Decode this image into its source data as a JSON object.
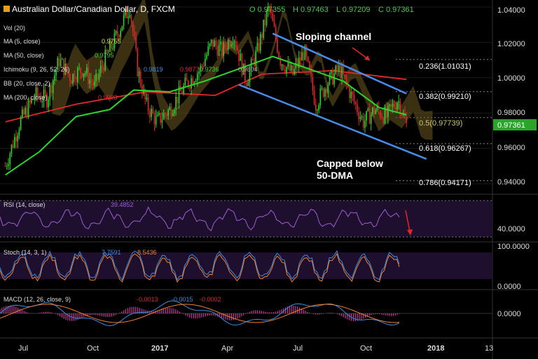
{
  "header": {
    "title": "Australian Dollar/Canadian Dollar, D, FXCM",
    "ohlc": {
      "open": "O 0.97355",
      "high": "H 0.97463",
      "low": "L 0.97209",
      "close": "C 0.97361"
    }
  },
  "indicators": [
    {
      "label": "Vol (20)"
    },
    {
      "label": "MA (5, close)",
      "value": "0.9755",
      "color": "#e7e74a"
    },
    {
      "label": "MA (50, close)",
      "value": "0.9795",
      "color": "#2ed52e"
    },
    {
      "label": "Ichimoku (9, 26, 52, 26)",
      "values": [
        "0.9819",
        "0.9877",
        "0.9736",
        "0.9804"
      ]
    },
    {
      "label": "BB (20, close, 2)"
    },
    {
      "label": "MA (200, close)",
      "value": "0.9993",
      "color": "#e02828"
    }
  ],
  "annotations": {
    "sloping_channel": "Sloping channel",
    "capped_line1": "Capped below",
    "capped_line2": "50-DMA"
  },
  "chart_data": [
    {
      "type": "candlestick",
      "title": "Australian Dollar/Canadian Dollar, D, FXCM",
      "ylim": [
        0.93,
        1.045
      ],
      "y_ticks": [
        "1.04000",
        "1.02000",
        "1.00000",
        "0.98000",
        "0.96000",
        "0.94000"
      ],
      "x_ticks": [
        "Jul",
        "Oct",
        "2017",
        "Apr",
        "Jul",
        "Oct",
        "2018",
        "13"
      ],
      "last_price": "0.97361",
      "fib_levels": [
        {
          "label": "0.236(1.01031)",
          "value": 1.01031
        },
        {
          "label": "0.382(0.99210)",
          "value": 0.9921
        },
        {
          "label": "0.5(0.97739)",
          "value": 0.97739
        },
        {
          "label": "0.618(0.96267)",
          "value": 0.96267
        },
        {
          "label": "0.786(0.94171)",
          "value": 0.94171
        }
      ],
      "close_path": [
        [
          "2016-06-01",
          0.95
        ],
        [
          "2016-06-20",
          0.975
        ],
        [
          "2016-07-10",
          0.99
        ],
        [
          "2016-07-25",
          0.988
        ],
        [
          "2016-08-10",
          1.01
        ],
        [
          "2016-08-25",
          1.0
        ],
        [
          "2016-09-10",
          1.005
        ],
        [
          "2016-09-25",
          0.995
        ],
        [
          "2016-10-10",
          1.012
        ],
        [
          "2016-10-20",
          1.02
        ],
        [
          "2016-11-01",
          1.032
        ],
        [
          "2016-11-10",
          1.04
        ],
        [
          "2016-11-20",
          1.005
        ],
        [
          "2016-12-01",
          0.985
        ],
        [
          "2016-12-15",
          0.975
        ],
        [
          "2017-01-01",
          0.982
        ],
        [
          "2017-01-20",
          0.995
        ],
        [
          "2017-02-10",
          1.005
        ],
        [
          "2017-02-25",
          1.02
        ],
        [
          "2017-03-10",
          1.015
        ],
        [
          "2017-03-25",
          1.025
        ],
        [
          "2017-04-10",
          0.998
        ],
        [
          "2017-04-25",
          1.015
        ],
        [
          "2017-05-10",
          1.04
        ],
        [
          "2017-05-25",
          1.01
        ],
        [
          "2017-06-10",
          1.002
        ],
        [
          "2017-06-25",
          1.015
        ],
        [
          "2017-07-10",
          0.985
        ],
        [
          "2017-07-25",
          0.997
        ],
        [
          "2017-08-10",
          1.005
        ],
        [
          "2017-08-25",
          0.99
        ],
        [
          "2017-09-10",
          0.975
        ],
        [
          "2017-09-25",
          0.982
        ],
        [
          "2017-10-10",
          0.978
        ],
        [
          "2017-10-25",
          0.988
        ],
        [
          "2017-11-05",
          0.973
        ]
      ],
      "ma50": [
        [
          "2016-06-01",
          0.945
        ],
        [
          "2016-07-15",
          0.958
        ],
        [
          "2016-09-01",
          0.978
        ],
        [
          "2016-10-15",
          0.982
        ],
        [
          "2016-11-15",
          0.993
        ],
        [
          "2017-01-01",
          0.992
        ],
        [
          "2017-02-15",
          0.998
        ],
        [
          "2017-04-01",
          1.005
        ],
        [
          "2017-05-15",
          1.012
        ],
        [
          "2017-07-01",
          1.005
        ],
        [
          "2017-08-15",
          0.998
        ],
        [
          "2017-10-01",
          0.983
        ],
        [
          "2017-11-05",
          0.979
        ]
      ],
      "ma200": [
        [
          "2016-06-01",
          0.975
        ],
        [
          "2016-09-01",
          0.985
        ],
        [
          "2016-12-01",
          0.992
        ],
        [
          "2017-03-01",
          0.99
        ],
        [
          "2017-05-01",
          1.002
        ],
        [
          "2017-08-01",
          1.004
        ],
        [
          "2017-11-05",
          0.999
        ]
      ],
      "channel_upper": [
        [
          "2017-05-15",
          1.025
        ],
        [
          "2017-11-05",
          0.991
        ]
      ],
      "channel_lower": [
        [
          "2017-04-01",
          0.996
        ],
        [
          "2017-12-01",
          0.954
        ]
      ]
    },
    {
      "type": "line",
      "title": "RSI (14, close)",
      "value": "39.4852",
      "y_ticks": [
        "40.0000"
      ]
    },
    {
      "type": "line",
      "title": "Stoch (14, 3, 1)",
      "values": [
        "7.7591",
        "8.5436"
      ],
      "y_ticks": [
        "100.0000",
        "0.0000"
      ]
    },
    {
      "type": "bar",
      "title": "MACD (12, 26, close, 9)",
      "values": [
        "-0.0013",
        "-0.0015",
        "-0.0002"
      ],
      "y_ticks": [
        "0.0000"
      ]
    }
  ]
}
